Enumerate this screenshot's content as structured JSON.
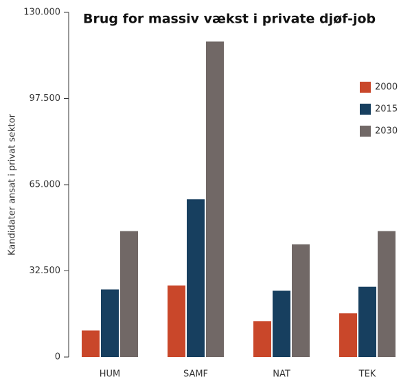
{
  "chart_data": {
    "type": "bar",
    "title": "Brug for massiv vækst i private djøf-job",
    "y_label": "Kandidater ansat i privat sektor",
    "categories": [
      "HUM",
      "SAMF",
      "NAT",
      "TEK"
    ],
    "series": [
      {
        "name": "2000",
        "color": "#c9472a",
        "values": [
          10000,
          27000,
          13500,
          16500
        ]
      },
      {
        "name": "2015",
        "color": "#173f5f",
        "values": [
          25500,
          59500,
          25000,
          26500
        ]
      },
      {
        "name": "2030",
        "color": "#716866",
        "values": [
          47500,
          119000,
          42500,
          47500
        ]
      }
    ],
    "ylim": [
      0,
      130000
    ],
    "yticks": [
      0,
      {
        "value": 32500,
        "label": "32.500"
      },
      {
        "value": 65000,
        "label": "65.000"
      },
      {
        "value": 97500,
        "label": "97.500"
      },
      {
        "value": 130000,
        "label": "130.000"
      }
    ],
    "grid": false,
    "legend": "right"
  }
}
